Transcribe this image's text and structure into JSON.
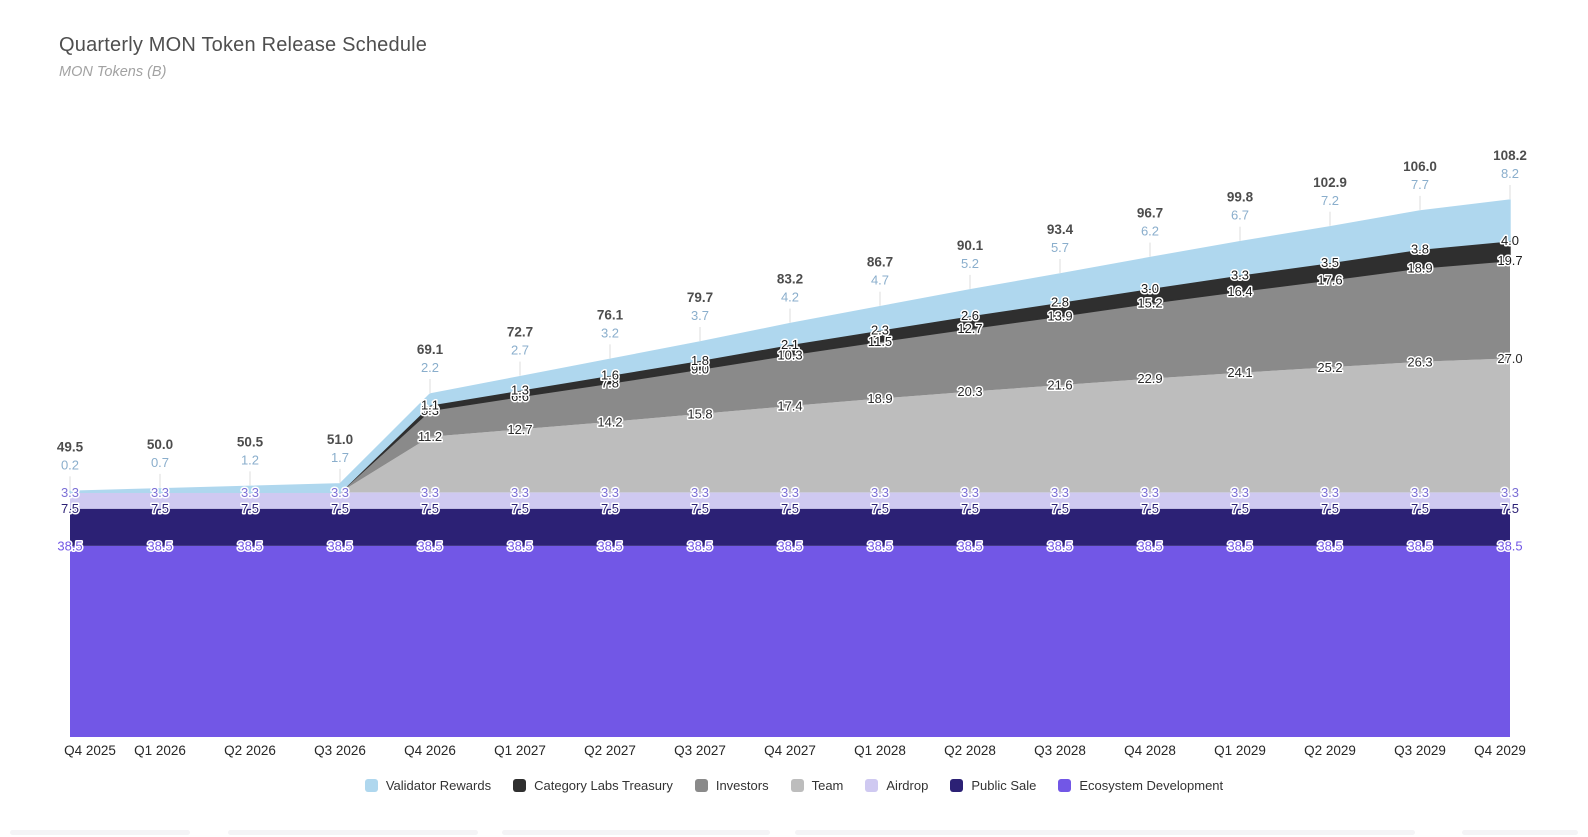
{
  "page": {
    "title": "Quarterly MON Token Release Schedule",
    "subtitle": "MON Tokens (B)"
  },
  "chart_data": {
    "type": "area",
    "stacked": true,
    "title": "Quarterly MON Token Release Schedule",
    "xlabel": "",
    "ylabel": "MON Tokens (B)",
    "grid": false,
    "legend_position": "bottom",
    "x": [
      "Q4 2025",
      "Q1 2026",
      "Q2 2026",
      "Q3 2026",
      "Q4 2026",
      "Q1 2027",
      "Q2 2027",
      "Q3 2027",
      "Q4 2027",
      "Q1 2028",
      "Q2 2028",
      "Q3 2028",
      "Q4 2028",
      "Q1 2029",
      "Q2 2029",
      "Q3 2029",
      "Q4 2029"
    ],
    "totals": [
      49.5,
      50.0,
      50.5,
      51.0,
      69.1,
      72.7,
      76.1,
      79.7,
      83.2,
      86.7,
      90.1,
      93.4,
      96.7,
      99.8,
      102.9,
      106.0,
      108.2
    ],
    "series": [
      {
        "name": "Validator Rewards",
        "color": "#afd7ee",
        "label_color": "#8aaecc",
        "values": [
          0.2,
          0.7,
          1.2,
          1.7,
          2.2,
          2.7,
          3.2,
          3.7,
          4.2,
          4.7,
          5.2,
          5.7,
          6.2,
          6.7,
          7.2,
          7.7,
          8.2
        ]
      },
      {
        "name": "Category Labs Treasury",
        "color": "#2f2f2f",
        "label_color": "#1c1c1c",
        "values": [
          0,
          0,
          0,
          0,
          1.1,
          1.3,
          1.6,
          1.8,
          2.1,
          2.3,
          2.6,
          2.8,
          3.0,
          3.3,
          3.5,
          3.8,
          4.0
        ]
      },
      {
        "name": "Investors",
        "color": "#8a8a8a",
        "label_color": "#1c1c1c",
        "values": [
          0,
          0,
          0,
          0,
          5.3,
          6.6,
          7.8,
          9.0,
          10.3,
          11.5,
          12.7,
          13.9,
          15.2,
          16.4,
          17.6,
          18.9,
          19.7
        ]
      },
      {
        "name": "Team",
        "color": "#bdbdbd",
        "label_color": "#2a2a2a",
        "values": [
          0,
          0,
          0,
          0,
          11.2,
          12.7,
          14.2,
          15.8,
          17.4,
          18.9,
          20.3,
          21.6,
          22.9,
          24.1,
          25.2,
          26.3,
          27.0
        ]
      },
      {
        "name": "Airdrop",
        "color": "#cfc9f1",
        "label_color": "#7b6fd6",
        "values": [
          3.3,
          3.3,
          3.3,
          3.3,
          3.3,
          3.3,
          3.3,
          3.3,
          3.3,
          3.3,
          3.3,
          3.3,
          3.3,
          3.3,
          3.3,
          3.3,
          3.3
        ]
      },
      {
        "name": "Public Sale",
        "color": "#2c2175",
        "label_color": "#2c2175",
        "values": [
          7.5,
          7.5,
          7.5,
          7.5,
          7.5,
          7.5,
          7.5,
          7.5,
          7.5,
          7.5,
          7.5,
          7.5,
          7.5,
          7.5,
          7.5,
          7.5,
          7.5
        ]
      },
      {
        "name": "Ecosystem Development",
        "color": "#7257e6",
        "label_color": "#7257e6",
        "values": [
          38.5,
          38.5,
          38.5,
          38.5,
          38.5,
          38.5,
          38.5,
          38.5,
          38.5,
          38.5,
          38.5,
          38.5,
          38.5,
          38.5,
          38.5,
          38.5,
          38.5
        ]
      }
    ]
  }
}
